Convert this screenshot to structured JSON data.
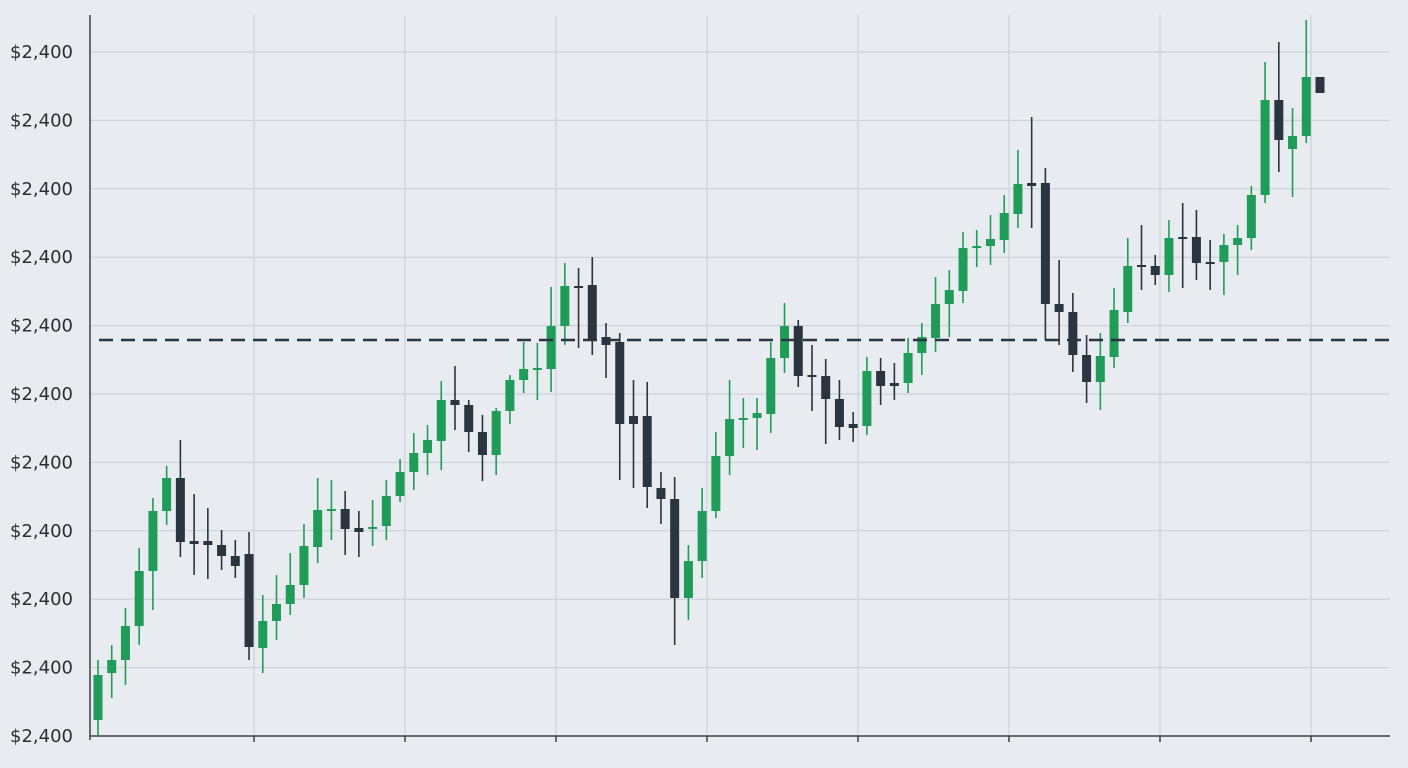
{
  "chart_data": {
    "type": "candlestick",
    "categories": [
      null,
      null,
      null,
      null,
      null,
      null,
      null,
      null,
      null,
      null,
      null,
      null,
      null,
      null,
      null,
      null,
      null,
      null,
      null,
      null,
      null,
      null,
      null,
      null,
      null,
      null,
      null,
      null,
      null,
      null,
      null,
      null,
      null,
      null,
      null,
      null,
      null,
      null,
      null,
      null,
      null,
      null,
      null,
      null,
      null,
      null,
      null,
      null,
      null,
      null,
      null,
      null,
      null,
      null,
      null,
      null,
      null,
      null,
      null,
      null,
      null,
      null,
      null,
      null,
      null,
      null,
      null,
      null,
      null,
      null,
      null,
      null,
      null,
      null,
      null,
      null,
      null,
      null,
      null,
      null,
      null,
      null,
      null,
      null,
      null,
      null,
      null,
      null,
      null,
      null
    ],
    "open": [
      2399.674,
      2399.721,
      2399.734,
      2399.768,
      2399.823,
      2399.883,
      2399.916,
      2399.853,
      2399.853,
      2399.849,
      2399.838,
      2399.84,
      2399.746,
      2399.773,
      2399.79,
      2399.809,
      2399.847,
      2399.883,
      2399.885,
      2399.866,
      2399.865,
      2399.868,
      2399.898,
      2399.922,
      2399.941,
      2399.953,
      2399.994,
      2399.989,
      2399.962,
      2399.939,
      2399.983,
      2400.014,
      2400.024,
      2400.025,
      2400.068,
      2400.108,
      2400.109,
      2400.057,
      2400.052,
      2399.978,
      2399.978,
      2399.906,
      2399.895,
      2399.796,
      2399.833,
      2399.883,
      2399.938,
      2399.974,
      2399.976,
      2399.98,
      2400.036,
      2400.068,
      2400.019,
      2400.018,
      2399.995,
      2399.97,
      2399.968,
      2400.023,
      2400.011,
      2400.011,
      2400.041,
      2400.056,
      2400.09,
      2400.103,
      2400.146,
      2400.148,
      2400.154,
      2400.18,
      2400.211,
      2400.211,
      2400.09,
      2400.082,
      2400.039,
      2400.012,
      2400.037,
      2400.082,
      2400.129,
      2400.128,
      2400.119,
      2400.157,
      2400.157,
      2400.132,
      2400.132,
      2400.149,
      2400.156,
      2400.199,
      2400.294,
      2400.245,
      2400.258,
      2400.317
    ],
    "high": [
      2399.734,
      2399.749,
      2399.786,
      2399.846,
      2399.896,
      2399.928,
      2399.954,
      2399.9,
      2399.886,
      2399.864,
      2399.854,
      2399.862,
      2399.799,
      2399.819,
      2399.841,
      2399.87,
      2399.916,
      2399.914,
      2399.903,
      2399.883,
      2399.894,
      2399.914,
      2399.935,
      2399.961,
      2399.969,
      2400.013,
      2400.028,
      2399.994,
      2399.979,
      2399.986,
      2400.019,
      2400.052,
      2400.051,
      2400.107,
      2400.131,
      2400.126,
      2400.137,
      2400.071,
      2400.061,
      2400.014,
      2400.012,
      2399.922,
      2399.917,
      2399.849,
      2399.906,
      2399.962,
      2400.014,
      2399.996,
      2399.996,
      2400.052,
      2400.091,
      2400.074,
      2400.049,
      2400.035,
      2400.014,
      2399.982,
      2400.037,
      2400.036,
      2400.031,
      2400.056,
      2400.071,
      2400.117,
      2400.124,
      2400.162,
      2400.164,
      2400.179,
      2400.199,
      2400.244,
      2400.277,
      2400.226,
      2400.134,
      2400.101,
      2400.059,
      2400.061,
      2400.106,
      2400.156,
      2400.169,
      2400.139,
      2400.174,
      2400.191,
      2400.184,
      2400.154,
      2400.16,
      2400.169,
      2400.208,
      2400.332,
      2400.352,
      2400.286,
      2400.374,
      2400.317
    ],
    "low": [
      2399.659,
      2399.696,
      2399.709,
      2399.749,
      2399.784,
      2399.869,
      2399.837,
      2399.819,
      2399.815,
      2399.824,
      2399.816,
      2399.734,
      2399.721,
      2399.754,
      2399.779,
      2399.796,
      2399.831,
      2399.854,
      2399.839,
      2399.837,
      2399.848,
      2399.854,
      2399.892,
      2399.904,
      2399.919,
      2399.924,
      2399.964,
      2399.942,
      2399.913,
      2399.919,
      2399.97,
      2400.001,
      2399.994,
      2400.002,
      2400.049,
      2400.046,
      2400.039,
      2400.016,
      2399.914,
      2399.906,
      2399.886,
      2399.87,
      2399.749,
      2399.774,
      2399.816,
      2399.876,
      2399.919,
      2399.946,
      2399.944,
      2399.961,
      2400.021,
      2400.007,
      2399.983,
      2399.95,
      2399.954,
      2399.952,
      2399.959,
      2399.989,
      2399.994,
      2400.001,
      2400.019,
      2400.042,
      2400.057,
      2400.091,
      2400.127,
      2400.129,
      2400.141,
      2400.166,
      2400.166,
      2400.054,
      2400.049,
      2400.022,
      2399.991,
      2399.984,
      2400.026,
      2400.071,
      2400.104,
      2400.109,
      2400.102,
      2400.106,
      2400.114,
      2400.104,
      2400.099,
      2400.119,
      2400.144,
      2400.191,
      2400.222,
      2400.197,
      2400.251,
      2400.301
    ],
    "close": [
      2399.719,
      2399.734,
      2399.768,
      2399.823,
      2399.883,
      2399.916,
      2399.852,
      2399.85,
      2399.849,
      2399.838,
      2399.828,
      2399.747,
      2399.773,
      2399.79,
      2399.809,
      2399.848,
      2399.884,
      2399.885,
      2399.865,
      2399.862,
      2399.867,
      2399.898,
      2399.922,
      2399.941,
      2399.954,
      2399.994,
      2399.989,
      2399.962,
      2399.939,
      2399.983,
      2400.014,
      2400.025,
      2400.026,
      2400.068,
      2400.108,
      2400.107,
      2400.053,
      2400.049,
      2399.97,
      2399.97,
      2399.907,
      2399.895,
      2399.796,
      2399.833,
      2399.883,
      2399.938,
      2399.975,
      2399.976,
      2399.981,
      2400.036,
      2400.068,
      2400.018,
      2400.017,
      2399.995,
      2399.967,
      2399.966,
      2400.023,
      2400.008,
      2400.008,
      2400.041,
      2400.057,
      2400.09,
      2400.104,
      2400.146,
      2400.148,
      2400.155,
      2400.181,
      2400.21,
      2400.208,
      2400.09,
      2400.082,
      2400.039,
      2400.012,
      2400.038,
      2400.084,
      2400.128,
      2400.127,
      2400.119,
      2400.156,
      2400.156,
      2400.131,
      2400.131,
      2400.149,
      2400.156,
      2400.199,
      2400.294,
      2400.254,
      2400.258,
      2400.317,
      2400.301
    ],
    "up_color": "#1f9d58",
    "down_color": "#2b3540",
    "reference_line": 2400.054,
    "ylim": [
      2399.658,
      2400.379
    ],
    "yticks": [
      {
        "value": 2399.658,
        "label": "$2,400"
      },
      {
        "value": 2399.7264,
        "label": "$2,400"
      },
      {
        "value": 2399.7948,
        "label": "$2,400"
      },
      {
        "value": 2399.8632,
        "label": "$2,400"
      },
      {
        "value": 2399.9316,
        "label": "$2,400"
      },
      {
        "value": 2400,
        "label": "$2,400"
      },
      {
        "value": 2400.0684,
        "label": "$2,400"
      },
      {
        "value": 2400.1368,
        "label": "$2,400"
      },
      {
        "value": 2400.2052,
        "label": "$2,400"
      },
      {
        "value": 2400.2736,
        "label": "$2,400"
      },
      {
        "value": 2400.342,
        "label": "$2,400"
      }
    ],
    "grid": true
  }
}
